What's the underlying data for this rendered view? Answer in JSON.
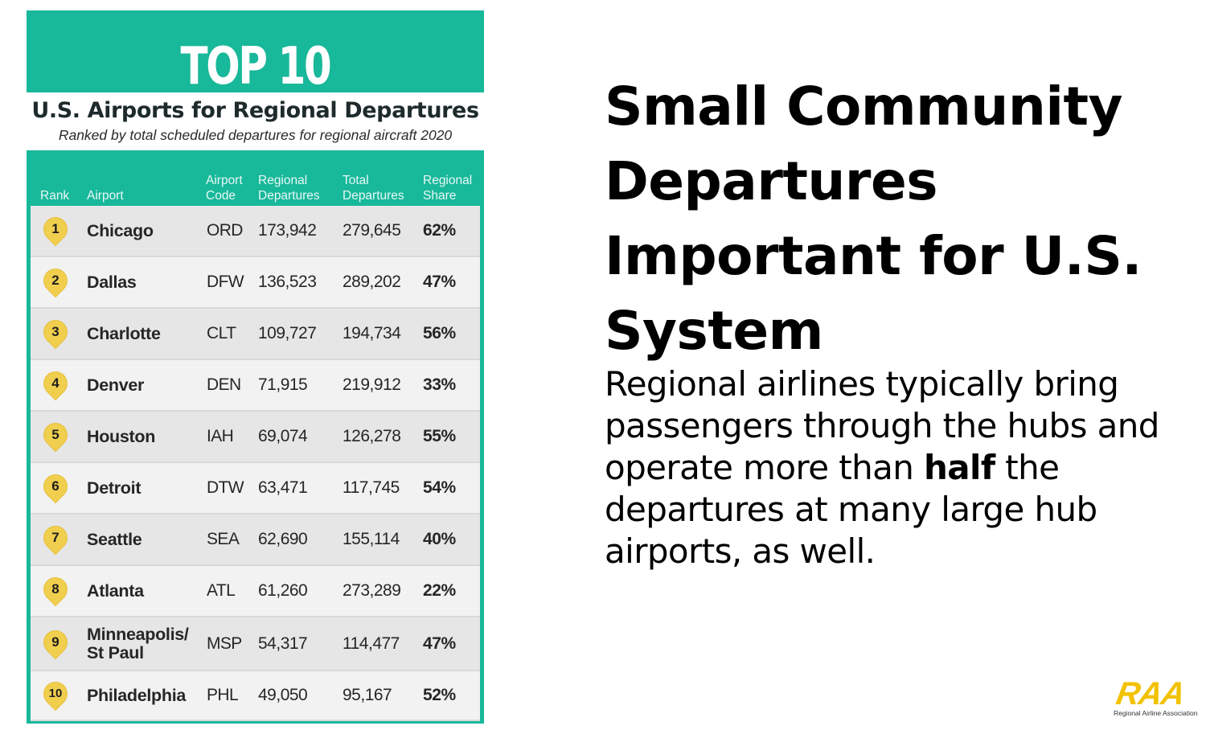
{
  "card": {
    "title": "TOP 10",
    "subtitle": "U.S. Airports for Regional Departures",
    "subtitle2": "Ranked by total scheduled departures for regional aircraft 2020",
    "headers": {
      "rank": "Rank",
      "airport": "Airport",
      "code": "Airport\nCode",
      "regional": "Regional\nDepartures",
      "total": "Total\nDepartures",
      "share": "Regional\nShare"
    },
    "rows": [
      {
        "rank": "1",
        "airport": "Chicago",
        "code": "ORD",
        "regional": "173,942",
        "total": "279,645",
        "share": "62%"
      },
      {
        "rank": "2",
        "airport": "Dallas",
        "code": "DFW",
        "regional": "136,523",
        "total": "289,202",
        "share": "47%"
      },
      {
        "rank": "3",
        "airport": "Charlotte",
        "code": "CLT",
        "regional": "109,727",
        "total": "194,734",
        "share": "56%"
      },
      {
        "rank": "4",
        "airport": "Denver",
        "code": "DEN",
        "regional": "71,915",
        "total": "219,912",
        "share": "33%"
      },
      {
        "rank": "5",
        "airport": "Houston",
        "code": "IAH",
        "regional": "69,074",
        "total": "126,278",
        "share": "55%"
      },
      {
        "rank": "6",
        "airport": "Detroit",
        "code": "DTW",
        "regional": "63,471",
        "total": "117,745",
        "share": "54%"
      },
      {
        "rank": "7",
        "airport": "Seattle",
        "code": "SEA",
        "regional": "62,690",
        "total": "155,114",
        "share": "40%"
      },
      {
        "rank": "8",
        "airport": "Atlanta",
        "code": "ATL",
        "regional": "61,260",
        "total": "273,289",
        "share": "22%"
      },
      {
        "rank": "9",
        "airport": "Minneapolis/\nSt Paul",
        "code": "MSP",
        "regional": "54,317",
        "total": "114,477",
        "share": "47%"
      },
      {
        "rank": "10",
        "airport": "Philadelphia",
        "code": "PHL",
        "regional": "49,050",
        "total": "95,167",
        "share": "52%"
      }
    ]
  },
  "headline": "Small Community Departures Important for U.S. System",
  "body": {
    "part1": "Regional airlines typically bring passengers through the hubs and operate more than ",
    "bold": "half",
    "part2": " the departures at many large hub airports, as well."
  },
  "logo": {
    "mark": "RAA",
    "text": "Regional Airline Association"
  },
  "colors": {
    "teal": "#18b89a",
    "rank_marker": "#f1cf4e",
    "logo_yellow": "#f2c200"
  }
}
